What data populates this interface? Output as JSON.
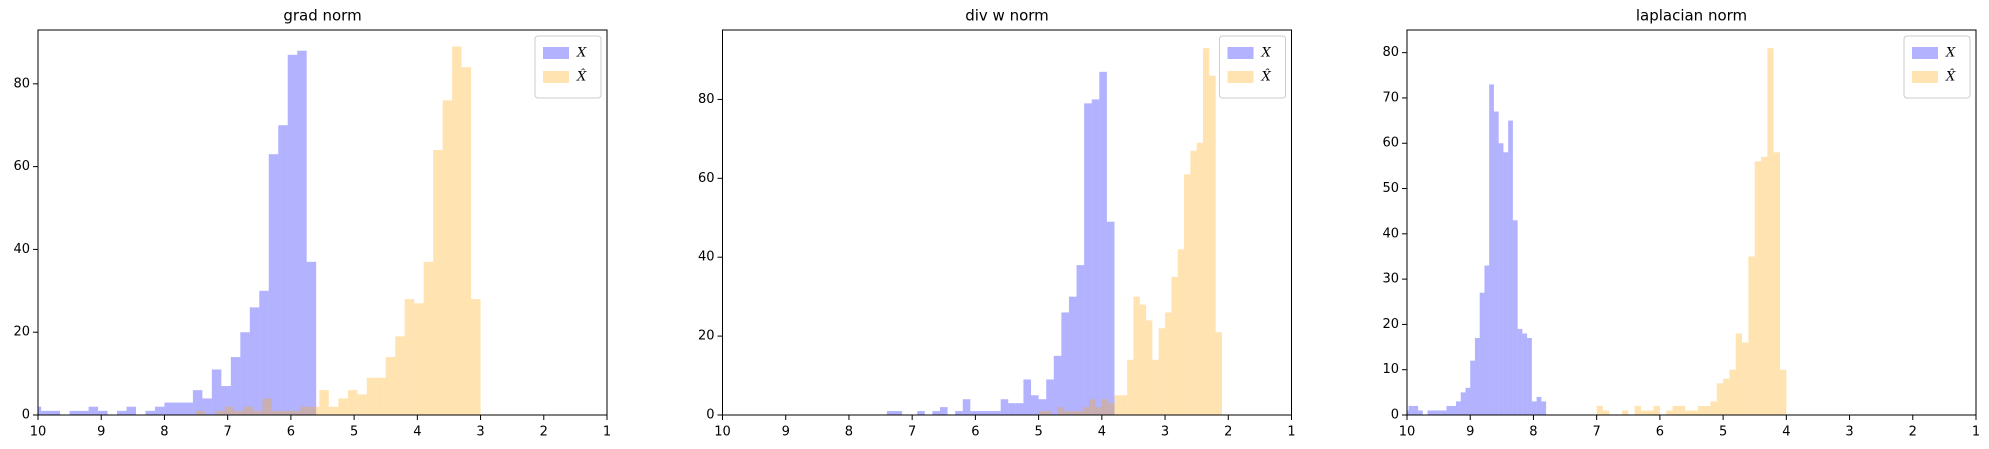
{
  "chart_data": [
    {
      "type": "histogram",
      "title": "grad norm",
      "xlim": [
        10,
        1
      ],
      "xticks": [
        10,
        9,
        8,
        7,
        6,
        5,
        4,
        3,
        2,
        1
      ],
      "ylim": [
        0,
        93
      ],
      "yticks": [
        0,
        20,
        40,
        60,
        80
      ],
      "alpha": 0.3,
      "legend": "upper right",
      "series": [
        {
          "name": "X",
          "color": "blue",
          "bins": [
            5.6,
            5.75,
            5.9,
            6.05,
            6.2,
            6.35,
            6.5,
            6.65,
            6.8,
            6.95,
            7.1,
            7.25,
            7.4,
            7.55,
            7.7,
            7.85,
            8,
            8.15,
            8.3,
            8.45,
            8.6,
            8.75,
            8.9,
            9.05,
            9.2,
            9.35,
            9.5,
            9.65,
            9.8,
            9.95,
            10.1
          ],
          "values": [
            37,
            88,
            87,
            70,
            63,
            30,
            26,
            20,
            14,
            7,
            11,
            4,
            6,
            3,
            3,
            3,
            2,
            1,
            0,
            2,
            1,
            0,
            1,
            2,
            1,
            1,
            0,
            1,
            1,
            2
          ]
        },
        {
          "name": "X̂",
          "color": "orange",
          "bins": [
            3,
            3.15,
            3.3,
            3.45,
            3.6,
            3.75,
            3.9,
            4.05,
            4.2,
            4.35,
            4.5,
            4.65,
            4.8,
            4.95,
            5.1,
            5.25,
            5.4,
            5.55,
            5.7,
            5.85,
            6,
            6.15,
            6.3,
            6.45,
            6.6,
            6.75,
            6.9,
            7.05,
            7.2,
            7.35,
            7.5
          ],
          "values": [
            28,
            84,
            89,
            76,
            64,
            37,
            27,
            28,
            19,
            14,
            9,
            9,
            5,
            6,
            4,
            2,
            6,
            2,
            2,
            1,
            1,
            1,
            4,
            1,
            2,
            1,
            2,
            1,
            0,
            1
          ]
        }
      ]
    },
    {
      "type": "histogram",
      "title": "div w norm",
      "xlim": [
        10,
        1
      ],
      "xticks": [
        10,
        9,
        8,
        7,
        6,
        5,
        4,
        3,
        2,
        1
      ],
      "ylim": [
        0,
        97.6
      ],
      "yticks": [
        0,
        20,
        40,
        60,
        80
      ],
      "alpha": 0.3,
      "legend": "upper right",
      "series": [
        {
          "name": "X",
          "color": "blue",
          "bins": [
            3.8,
            3.92,
            4.04,
            4.16,
            4.28,
            4.4,
            4.52,
            4.64,
            4.76,
            4.88,
            5,
            5.12,
            5.24,
            5.36,
            5.48,
            5.6,
            5.72,
            5.84,
            5.96,
            6.08,
            6.2,
            6.32,
            6.44,
            6.56,
            6.68,
            6.8,
            6.92,
            7.04,
            7.16,
            7.28,
            7.4
          ],
          "values": [
            49,
            87,
            80,
            79,
            38,
            30,
            26,
            15,
            9,
            4,
            5,
            9,
            3,
            3,
            4,
            1,
            1,
            1,
            1,
            4,
            1,
            0,
            2,
            1,
            0,
            1,
            0,
            0,
            1,
            1
          ]
        },
        {
          "name": "X̂",
          "color": "orange",
          "bins": [
            2.1,
            2.2,
            2.3,
            2.4,
            2.5,
            2.6,
            2.7,
            2.8,
            2.9,
            3,
            3.1,
            3.2,
            3.3,
            3.4,
            3.5,
            3.6,
            3.7,
            3.8,
            3.9,
            4,
            4.1,
            4.2,
            4.3,
            4.4,
            4.5,
            4.6,
            4.7,
            4.8,
            4.9,
            5,
            5.1
          ],
          "values": [
            21,
            86,
            93,
            69,
            67,
            61,
            42,
            35,
            26,
            22,
            14,
            24,
            28,
            30,
            14,
            5,
            5,
            3,
            4,
            2,
            4,
            2,
            1,
            1,
            1,
            2,
            0,
            1,
            1,
            0
          ]
        }
      ]
    },
    {
      "type": "histogram",
      "title": "laplacian norm",
      "xlim": [
        10,
        1
      ],
      "xticks": [
        10,
        9,
        8,
        7,
        6,
        5,
        4,
        3,
        2,
        1
      ],
      "ylim": [
        0,
        85
      ],
      "yticks": [
        0,
        10,
        20,
        30,
        40,
        50,
        60,
        70,
        80
      ],
      "alpha": 0.3,
      "legend": "upper right",
      "series": [
        {
          "name": "X",
          "color": "blue",
          "bins": [
            7.8,
            7.875,
            7.95,
            8.025,
            8.1,
            8.175,
            8.25,
            8.325,
            8.4,
            8.475,
            8.55,
            8.625,
            8.7,
            8.775,
            8.85,
            8.925,
            9,
            9.075,
            9.15,
            9.225,
            9.3,
            9.375,
            9.45,
            9.525,
            9.6,
            9.675,
            9.75,
            9.825,
            9.9,
            9.975,
            10.05
          ],
          "values": [
            3,
            4,
            3,
            17,
            18,
            19,
            43,
            65,
            58,
            60,
            67,
            73,
            33,
            27,
            17,
            12,
            6,
            5,
            3,
            2,
            2,
            1,
            1,
            1,
            1,
            0,
            1,
            2,
            2,
            1
          ]
        },
        {
          "name": "X̂",
          "color": "orange",
          "bins": [
            4,
            4.1,
            4.2,
            4.3,
            4.4,
            4.5,
            4.6,
            4.7,
            4.8,
            4.9,
            5,
            5.1,
            5.2,
            5.3,
            5.4,
            5.5,
            5.6,
            5.7,
            5.8,
            5.9,
            6,
            6.1,
            6.2,
            6.3,
            6.4,
            6.5,
            6.6,
            6.7,
            6.8,
            6.9,
            7
          ],
          "values": [
            10,
            58,
            81,
            57,
            56,
            35,
            16,
            18,
            10,
            8,
            7,
            3,
            2,
            2,
            1,
            1,
            2,
            2,
            1,
            0,
            2,
            1,
            1,
            2,
            0,
            1,
            0,
            0,
            1,
            2
          ]
        }
      ]
    }
  ]
}
